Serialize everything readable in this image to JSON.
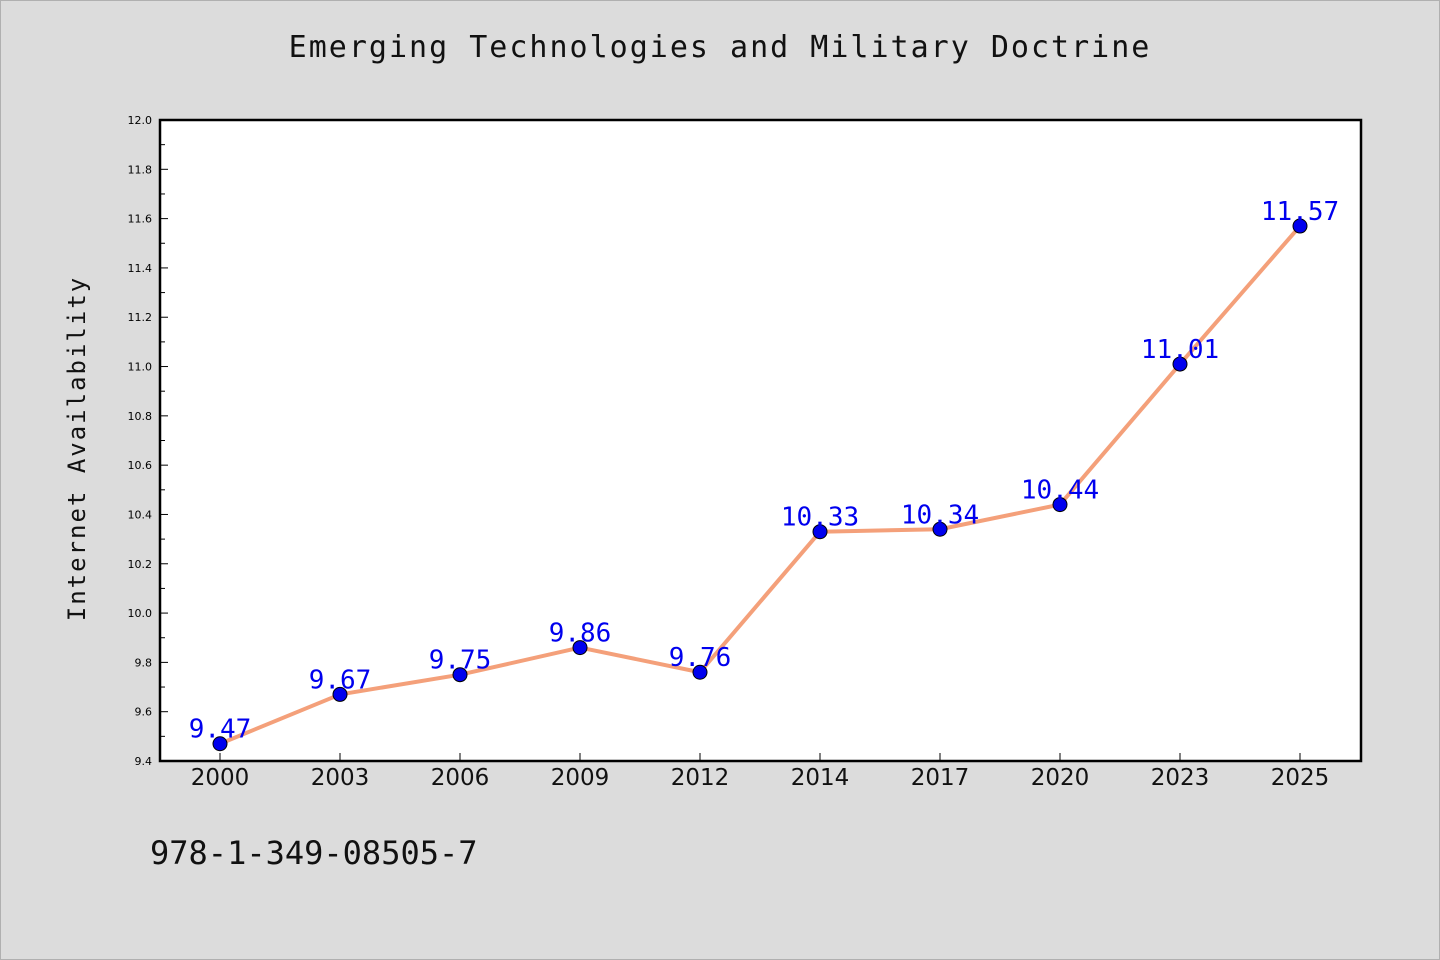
{
  "chart_data": {
    "type": "line",
    "title": "Emerging Technologies and Military Doctrine",
    "xlabel": "",
    "ylabel": "Internet Availability",
    "categories": [
      "2000",
      "2003",
      "2006",
      "2009",
      "2012",
      "2014",
      "2017",
      "2020",
      "2023",
      "2025"
    ],
    "values": [
      9.47,
      9.67,
      9.75,
      9.86,
      9.76,
      10.33,
      10.34,
      10.44,
      11.01,
      11.57
    ],
    "value_labels": [
      "9.47",
      "9.67",
      "9.75",
      "9.86",
      "9.76",
      "10.33",
      "10.34",
      "10.44",
      "11.01",
      "11.57"
    ],
    "ylim": [
      9.4,
      12.0
    ],
    "yticks": [
      "9.4",
      "9.6",
      "9.8",
      "10.0",
      "10.2",
      "10.4",
      "10.6",
      "10.8",
      "11.0",
      "11.2",
      "11.4",
      "11.6",
      "11.8",
      "12.0"
    ],
    "grid": false,
    "legend": "none",
    "colors": {
      "line": "#f4a07a",
      "marker": "#0000ee",
      "label": "#0000ee",
      "plot_bg": "#ffffff",
      "page_bg": "#dcdcdc"
    }
  },
  "footer": {
    "isbn": "978-1-349-08505-7"
  }
}
